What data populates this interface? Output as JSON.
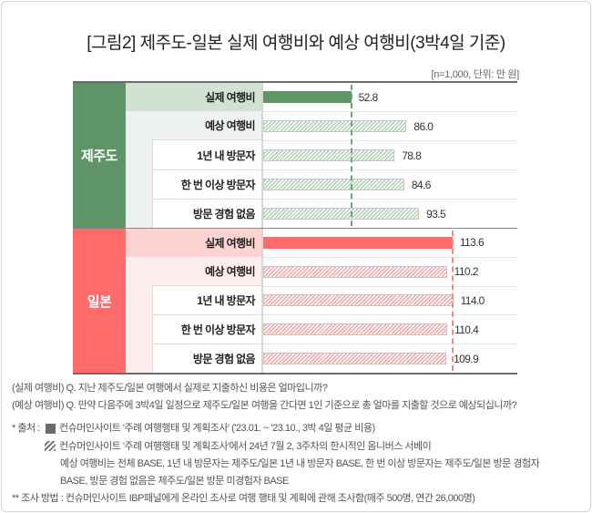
{
  "title": "[그림2] 제주도-일본 실제 여행비와 예상 여행비(3박4일 기준)",
  "unit_note": "[n=1,000, 단위: 만 원]",
  "colors": {
    "jeju": "#5e9466",
    "japan": "#ff6b6b"
  },
  "groups": [
    {
      "name": "제주도",
      "reference_value": 52.8,
      "rows": [
        {
          "label": "실제 여행비",
          "value": 52.8,
          "value_label": "52.8",
          "style": "solid"
        },
        {
          "label": "예상 여행비",
          "value": 86.0,
          "value_label": "86.0",
          "style": "hatched"
        },
        {
          "label": "1년 내 방문자",
          "value": 78.8,
          "value_label": "78.8",
          "style": "hatched"
        },
        {
          "label": "한 번 이상 방문자",
          "value": 84.6,
          "value_label": "84.6",
          "style": "hatched"
        },
        {
          "label": "방문 경험 없음",
          "value": 93.5,
          "value_label": "93.5",
          "style": "hatched"
        }
      ]
    },
    {
      "name": "일본",
      "reference_value": 113.6,
      "rows": [
        {
          "label": "실제 여행비",
          "value": 113.6,
          "value_label": "113.6",
          "style": "solid"
        },
        {
          "label": "예상 여행비",
          "value": 110.2,
          "value_label": "110.2",
          "style": "hatched"
        },
        {
          "label": "1년 내 방문자",
          "value": 114.0,
          "value_label": "114.0",
          "style": "hatched"
        },
        {
          "label": "한 번 이상 방문자",
          "value": 110.4,
          "value_label": "110.4",
          "style": "hatched"
        },
        {
          "label": "방문 경험 없음",
          "value": 109.9,
          "value_label": "109.9",
          "style": "hatched"
        }
      ]
    }
  ],
  "notes": {
    "q_actual": "(실제 여행비) Q. 지난 제주도/일본 여행에서 실제로 지출하신 비용은 얼마입니까?",
    "q_expected": "(예상 여행비) Q. 만약 다음주에 3박4일 일정으로 제주도/일본 여행을 간다면 1인 기준으로 총 얼마를 지출할 것으로 예상되십니까?",
    "source_label": "* 출처 :",
    "source_solid": "컨슈머인사이트 '주례 여행행태 및 계획조사' ('23.01. ~ '23.10., 3박 4일 평균 비용)",
    "source_hatched": "컨슈머인사이트 '주례 여행행태 및 계획조사'에서 24년 7월 2, 3주차의 한시적인 옴니버스 서베이",
    "base_line1": "예상 여행비는 전체 BASE, 1년 내 방문자는 제주도/일본 1년 내 방문자 BASE, 한 번 이상 방문자는 제주도/일본 방문 경험자",
    "base_line2": "BASE, 방문 경험 없음은 제주도/일본 방문 미경험자 BASE",
    "method": "** 조사 방법 : 컨슈머인사이트 IBP패널에게 온라인 조사로 여행 행태 및 계획에 관해 조사함(매주 500명, 연간 26,000명)"
  },
  "chart_data": {
    "type": "bar",
    "orientation": "horizontal",
    "title": "[그림2] 제주도-일본 실제 여행비와 예상 여행비(3박4일 기준)",
    "subtitle": "[n=1,000, 단위: 만 원]",
    "categories": [
      "실제 여행비",
      "예상 여행비",
      "1년 내 방문자",
      "한 번 이상 방문자",
      "방문 경험 없음"
    ],
    "series": [
      {
        "name": "제주도",
        "color": "#5e9466",
        "values": [
          52.8,
          86.0,
          78.8,
          84.6,
          93.5
        ]
      },
      {
        "name": "일본",
        "color": "#ff6b6b",
        "values": [
          113.6,
          110.2,
          114.0,
          110.4,
          109.9
        ]
      }
    ],
    "xlabel": "",
    "ylabel": "",
    "unit": "만 원",
    "grid": false,
    "annotations": [
      "Dashed reference line at 제주도 실제 여행비 52.8",
      "Dashed reference line at 일본 실제 여행비 113.6",
      "Solid bar = 실제 여행비 ('23.01.~'23.10.), hatched bars = 예상 여행비 (24년 7월 2, 3주차 옴니버스 서베이)"
    ]
  }
}
